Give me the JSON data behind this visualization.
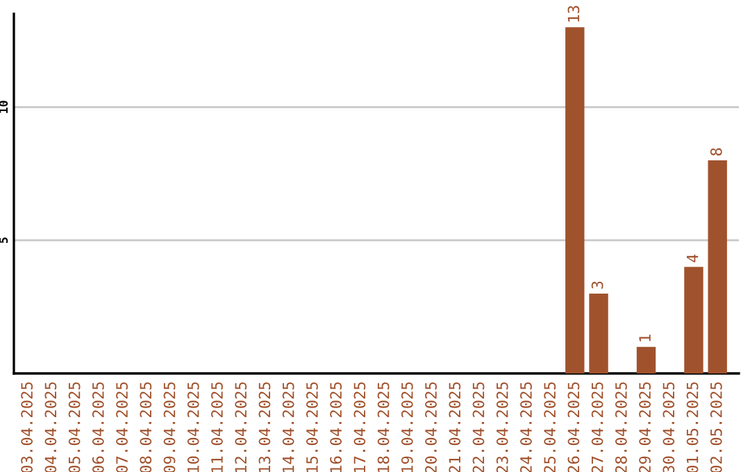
{
  "chart_data": {
    "type": "bar",
    "categories": [
      "03.04.2025",
      "04.04.2025",
      "05.04.2025",
      "06.04.2025",
      "07.04.2025",
      "08.04.2025",
      "09.04.2025",
      "10.04.2025",
      "11.04.2025",
      "12.04.2025",
      "13.04.2025",
      "14.04.2025",
      "15.04.2025",
      "16.04.2025",
      "17.04.2025",
      "18.04.2025",
      "19.04.2025",
      "20.04.2025",
      "21.04.2025",
      "22.04.2025",
      "23.04.2025",
      "24.04.2025",
      "25.04.2025",
      "26.04.2025",
      "27.04.2025",
      "28.04.2025",
      "29.04.2025",
      "30.04.2025",
      "01.05.2025",
      "02.05.2025"
    ],
    "values": [
      0,
      0,
      0,
      0,
      0,
      0,
      0,
      0,
      0,
      0,
      0,
      0,
      0,
      0,
      0,
      0,
      0,
      0,
      0,
      0,
      0,
      0,
      0,
      13,
      3,
      0,
      1,
      0,
      4,
      8
    ],
    "value_labels": [
      null,
      null,
      null,
      null,
      null,
      null,
      null,
      null,
      null,
      null,
      null,
      null,
      null,
      null,
      null,
      null,
      null,
      null,
      null,
      null,
      null,
      null,
      null,
      "13",
      "3",
      null,
      "1",
      null,
      "4",
      "8"
    ],
    "color": "#a0522d",
    "ylim": [
      0,
      13.5
    ],
    "yticks": [
      5,
      10
    ],
    "grid": "y"
  }
}
